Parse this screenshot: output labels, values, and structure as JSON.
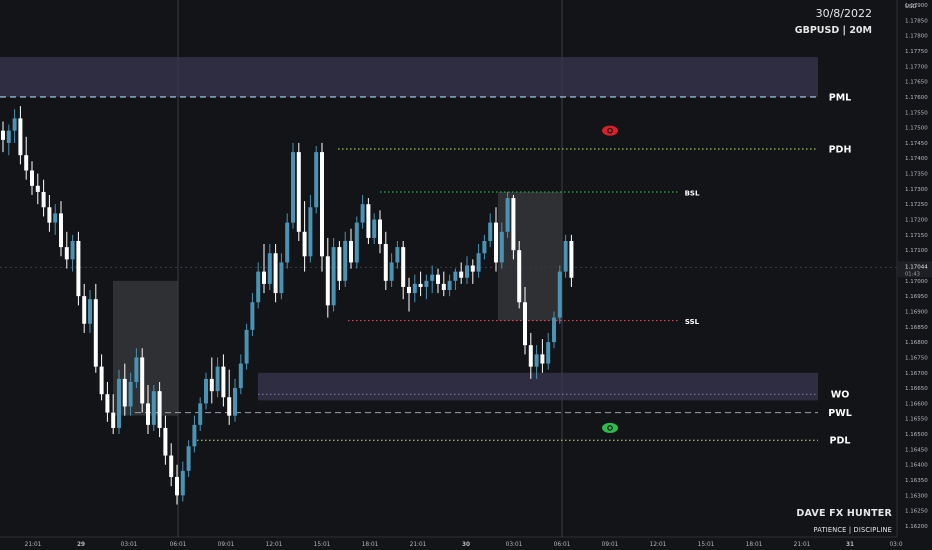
{
  "header": {
    "date": "30/8/2022",
    "symbol_interval": "GBPUSD | 20M"
  },
  "branding": {
    "name": "DAVE FX HUNTER",
    "tagline": "PATIENCE | DISCIPLINE"
  },
  "colors": {
    "background": "#131418",
    "bull": "#4a93b5",
    "bear": "#ffffff",
    "zone": "#3a3650",
    "box": "#3a3a3e",
    "green_level": "#c6ea6a",
    "red_level": "#e05064",
    "pml_line": "#8fb7cf",
    "eye_red": "#d81f2a",
    "eye_green": "#2dbd4f"
  },
  "chart_data": {
    "type": "candlestick",
    "title": "GBPUSD | 20M",
    "price_axis": {
      "currency_label": "USD",
      "ylim": [
        1.1618,
        1.1791
      ],
      "ticks": [
        "1.17900",
        "1.17850",
        "1.17800",
        "1.17750",
        "1.17700",
        "1.17650",
        "1.17600",
        "1.17550",
        "1.17500",
        "1.17450",
        "1.17400",
        "1.17350",
        "1.17300",
        "1.17250",
        "1.17200",
        "1.17150",
        "1.17100",
        "1.17050",
        "1.17000",
        "1.16950",
        "1.16900",
        "1.16850",
        "1.16800",
        "1.16750",
        "1.16700",
        "1.16650",
        "1.16600",
        "1.16550",
        "1.16500",
        "1.16450",
        "1.16400",
        "1.16350",
        "1.16300",
        "1.16250",
        "1.16200"
      ],
      "current_price": "1.17044",
      "countdown": "01:43"
    },
    "time_axis": {
      "labels": [
        "21:01",
        "29",
        "03:01",
        "06:01",
        "09:01",
        "12:01",
        "15:01",
        "18:01",
        "21:01",
        "30",
        "03:01",
        "06:01",
        "09:01",
        "12:01",
        "15:01",
        "18:01",
        "21:01",
        "31",
        "03:0"
      ]
    },
    "candles": [
      [
        1.1749,
        1.1752,
        1.1742,
        1.1746
      ],
      [
        1.1745,
        1.1751,
        1.1741,
        1.1749
      ],
      [
        1.1749,
        1.1756,
        1.1745,
        1.1753
      ],
      [
        1.1753,
        1.1757,
        1.1738,
        1.1741
      ],
      [
        1.1741,
        1.1747,
        1.1733,
        1.1736
      ],
      [
        1.1736,
        1.1739,
        1.1728,
        1.1731
      ],
      [
        1.1731,
        1.1735,
        1.1725,
        1.1729
      ],
      [
        1.1729,
        1.1733,
        1.1721,
        1.1724
      ],
      [
        1.1724,
        1.1728,
        1.1716,
        1.1719
      ],
      [
        1.1719,
        1.1725,
        1.1715,
        1.1722
      ],
      [
        1.1722,
        1.1726,
        1.1708,
        1.1711
      ],
      [
        1.1711,
        1.1716,
        1.1704,
        1.1707
      ],
      [
        1.1707,
        1.1715,
        1.1703,
        1.1713
      ],
      [
        1.1713,
        1.1716,
        1.1692,
        1.1695
      ],
      [
        1.1695,
        1.1699,
        1.1683,
        1.1686
      ],
      [
        1.1686,
        1.1697,
        1.1683,
        1.1694
      ],
      [
        1.1694,
        1.1699,
        1.167,
        1.1672
      ],
      [
        1.1672,
        1.1676,
        1.1661,
        1.1663
      ],
      [
        1.1663,
        1.1667,
        1.1654,
        1.1657
      ],
      [
        1.1657,
        1.1663,
        1.165,
        1.1652
      ],
      [
        1.1652,
        1.1671,
        1.165,
        1.1668
      ],
      [
        1.1668,
        1.1673,
        1.1656,
        1.1659
      ],
      [
        1.1659,
        1.167,
        1.1656,
        1.1667
      ],
      [
        1.1667,
        1.1678,
        1.1665,
        1.1675
      ],
      [
        1.1675,
        1.1678,
        1.1657,
        1.166
      ],
      [
        1.166,
        1.1666,
        1.165,
        1.1653
      ],
      [
        1.1653,
        1.1666,
        1.1651,
        1.1664
      ],
      [
        1.1664,
        1.1667,
        1.1649,
        1.1652
      ],
      [
        1.1652,
        1.1656,
        1.164,
        1.1643
      ],
      [
        1.1643,
        1.1647,
        1.1633,
        1.1636
      ],
      [
        1.1636,
        1.164,
        1.1627,
        1.163
      ],
      [
        1.163,
        1.1641,
        1.1628,
        1.1638
      ],
      [
        1.1638,
        1.1648,
        1.1636,
        1.1646
      ],
      [
        1.1646,
        1.1656,
        1.1644,
        1.1653
      ],
      [
        1.1653,
        1.1662,
        1.1651,
        1.166
      ],
      [
        1.166,
        1.167,
        1.1658,
        1.1668
      ],
      [
        1.1668,
        1.1675,
        1.166,
        1.1664
      ],
      [
        1.1664,
        1.1675,
        1.1662,
        1.1672
      ],
      [
        1.1672,
        1.1676,
        1.1659,
        1.1662
      ],
      [
        1.1662,
        1.1671,
        1.1653,
        1.1656
      ],
      [
        1.1656,
        1.1668,
        1.1654,
        1.1665
      ],
      [
        1.1665,
        1.1676,
        1.1663,
        1.1673
      ],
      [
        1.1673,
        1.1686,
        1.1671,
        1.1684
      ],
      [
        1.1684,
        1.1696,
        1.1682,
        1.1693
      ],
      [
        1.1693,
        1.1706,
        1.1691,
        1.1703
      ],
      [
        1.1703,
        1.1712,
        1.1696,
        1.1699
      ],
      [
        1.1699,
        1.1712,
        1.1697,
        1.1709
      ],
      [
        1.1709,
        1.1712,
        1.1693,
        1.1696
      ],
      [
        1.1696,
        1.1709,
        1.1694,
        1.1706
      ],
      [
        1.1706,
        1.1722,
        1.1704,
        1.1719
      ],
      [
        1.1719,
        1.1745,
        1.1717,
        1.1742
      ],
      [
        1.1742,
        1.1745,
        1.1713,
        1.1716
      ],
      [
        1.1716,
        1.1726,
        1.1703,
        1.1708
      ],
      [
        1.1708,
        1.1728,
        1.1706,
        1.1724
      ],
      [
        1.1724,
        1.1744,
        1.1722,
        1.1742
      ],
      [
        1.1742,
        1.1745,
        1.1703,
        1.1708
      ],
      [
        1.1708,
        1.1714,
        1.1688,
        1.1692
      ],
      [
        1.1692,
        1.1714,
        1.169,
        1.1711
      ],
      [
        1.1711,
        1.1713,
        1.1697,
        1.17
      ],
      [
        1.17,
        1.1716,
        1.1698,
        1.1713
      ],
      [
        1.1713,
        1.1717,
        1.1704,
        1.1706
      ],
      [
        1.1706,
        1.1721,
        1.1704,
        1.1719
      ],
      [
        1.1719,
        1.1728,
        1.1717,
        1.1725
      ],
      [
        1.1725,
        1.1727,
        1.1712,
        1.1714
      ],
      [
        1.1714,
        1.1722,
        1.1712,
        1.172
      ],
      [
        1.172,
        1.1723,
        1.1709,
        1.1712
      ],
      [
        1.1712,
        1.1716,
        1.1697,
        1.17
      ],
      [
        1.17,
        1.1709,
        1.1698,
        1.1706
      ],
      [
        1.1706,
        1.1713,
        1.1704,
        1.1711
      ],
      [
        1.1711,
        1.1713,
        1.1694,
        1.1698
      ],
      [
        1.1698,
        1.1701,
        1.169,
        1.1696
      ],
      [
        1.1696,
        1.1702,
        1.1693,
        1.1699
      ],
      [
        1.1699,
        1.1703,
        1.1695,
        1.1698
      ],
      [
        1.1698,
        1.1702,
        1.1694,
        1.17
      ],
      [
        1.17,
        1.1705,
        1.1696,
        1.1702
      ],
      [
        1.1702,
        1.1704,
        1.1696,
        1.1699
      ],
      [
        1.1699,
        1.1703,
        1.1695,
        1.1697
      ],
      [
        1.1697,
        1.1702,
        1.1695,
        1.17
      ],
      [
        1.17,
        1.1704,
        1.1697,
        1.1703
      ],
      [
        1.1703,
        1.1706,
        1.1699,
        1.1701
      ],
      [
        1.1701,
        1.1708,
        1.1699,
        1.1705
      ],
      [
        1.1705,
        1.1707,
        1.1699,
        1.1703
      ],
      [
        1.1703,
        1.1712,
        1.1701,
        1.1709
      ],
      [
        1.1709,
        1.1715,
        1.1707,
        1.1713
      ],
      [
        1.1713,
        1.1722,
        1.1711,
        1.1719
      ],
      [
        1.1719,
        1.1724,
        1.1703,
        1.1706
      ],
      [
        1.1706,
        1.1719,
        1.1704,
        1.1716
      ],
      [
        1.1716,
        1.1729,
        1.1714,
        1.1727
      ],
      [
        1.1727,
        1.1728,
        1.1707,
        1.171
      ],
      [
        1.171,
        1.1713,
        1.1691,
        1.1693
      ],
      [
        1.1693,
        1.1698,
        1.1676,
        1.1679
      ],
      [
        1.1679,
        1.1683,
        1.1668,
        1.1672
      ],
      [
        1.1672,
        1.1679,
        1.1668,
        1.1676
      ],
      [
        1.1676,
        1.1681,
        1.167,
        1.1673
      ],
      [
        1.1673,
        1.1683,
        1.1671,
        1.168
      ],
      [
        1.168,
        1.169,
        1.1678,
        1.1688
      ],
      [
        1.1688,
        1.1705,
        1.1686,
        1.1703
      ],
      [
        1.1703,
        1.1715,
        1.1701,
        1.1713
      ],
      [
        1.1713,
        1.1715,
        1.1698,
        1.1701
      ]
    ],
    "levels": [
      {
        "label": "PML",
        "price": 1.176,
        "style": "dashed"
      },
      {
        "label": "PDH",
        "price": 1.1743,
        "style": "dotted"
      },
      {
        "label": "BSL",
        "price": 1.1729,
        "style": "dotted"
      },
      {
        "label": "SSL",
        "price": 1.1687,
        "style": "dotted"
      },
      {
        "label": "WO",
        "price": 1.1663,
        "style": "dotted"
      },
      {
        "label": "PWL",
        "price": 1.1657,
        "style": "dashed"
      },
      {
        "label": "PDL",
        "price": 1.1648,
        "style": "dotted"
      }
    ],
    "zones": [
      {
        "name": "PML zone",
        "from": 1.176,
        "to": 1.1773
      },
      {
        "name": "WO zone",
        "from": 1.1661,
        "to": 1.167
      }
    ],
    "boxes": [
      {
        "name": "session box 1",
        "from": 1.1656,
        "to": 1.17
      },
      {
        "name": "session box 2",
        "from": 1.1687,
        "to": 1.1729
      }
    ],
    "markers": [
      {
        "name": "red-eye",
        "price": 1.1749
      },
      {
        "name": "green-eye",
        "price": 1.1652
      }
    ]
  }
}
